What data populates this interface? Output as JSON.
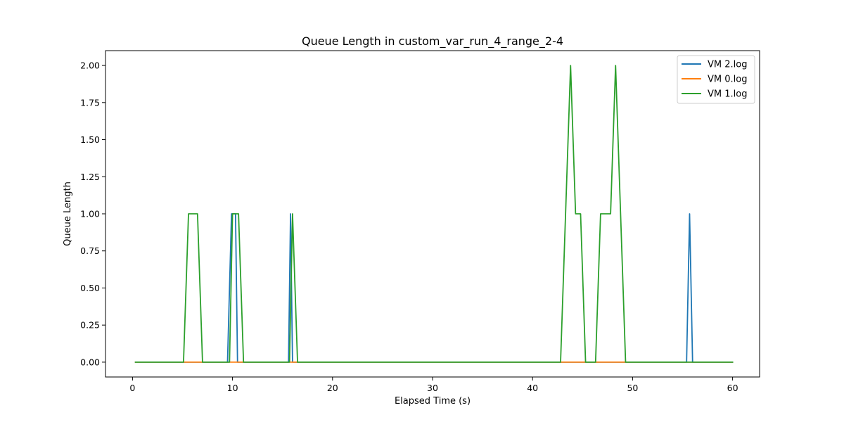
{
  "chart_data": {
    "type": "line",
    "title": "Queue Length in custom_var_run_4_range_2-4",
    "xlabel": "Elapsed Time (s)",
    "ylabel": "Queue Length",
    "xlim": [
      -2.7,
      62.7
    ],
    "ylim": [
      -0.1,
      2.1
    ],
    "xticks": [
      0,
      10,
      20,
      30,
      40,
      50,
      60
    ],
    "xtick_labels": [
      "0",
      "10",
      "20",
      "30",
      "40",
      "50",
      "60"
    ],
    "yticks": [
      0,
      0.25,
      0.5,
      0.75,
      1.0,
      1.25,
      1.5,
      1.75,
      2.0
    ],
    "ytick_labels": [
      "0.00",
      "0.25",
      "0.50",
      "0.75",
      "1.00",
      "1.25",
      "1.50",
      "1.75",
      "2.00"
    ],
    "grid": false,
    "legend_position": "top-right",
    "series": [
      {
        "name": "VM 2.log",
        "color": "#1f77b4",
        "x": [
          0.3,
          9.5,
          9.9,
          10.3,
          10.5,
          15.6,
          15.8,
          16.0,
          55.4,
          55.7,
          56.0,
          60.0
        ],
        "y": [
          0,
          0,
          1,
          1,
          0,
          0,
          1,
          0,
          0,
          1,
          0,
          0
        ]
      },
      {
        "name": "VM 0.log",
        "color": "#ff7f0e",
        "x": [
          0.3,
          60.0
        ],
        "y": [
          0,
          0
        ]
      },
      {
        "name": "VM 1.log",
        "color": "#2ca02c",
        "x": [
          0.3,
          5.1,
          5.6,
          6.5,
          7.0,
          9.7,
          10.0,
          10.2,
          10.6,
          11.1,
          15.7,
          16.0,
          16.5,
          42.8,
          43.8,
          44.3,
          44.8,
          45.3,
          46.3,
          46.8,
          47.8,
          48.3,
          49.3,
          60.0
        ],
        "y": [
          0,
          0,
          1,
          1,
          0,
          0,
          1,
          1,
          1,
          0,
          0,
          1,
          0,
          0,
          2,
          1,
          1,
          0,
          0,
          1,
          1,
          2,
          0,
          0
        ]
      }
    ]
  }
}
